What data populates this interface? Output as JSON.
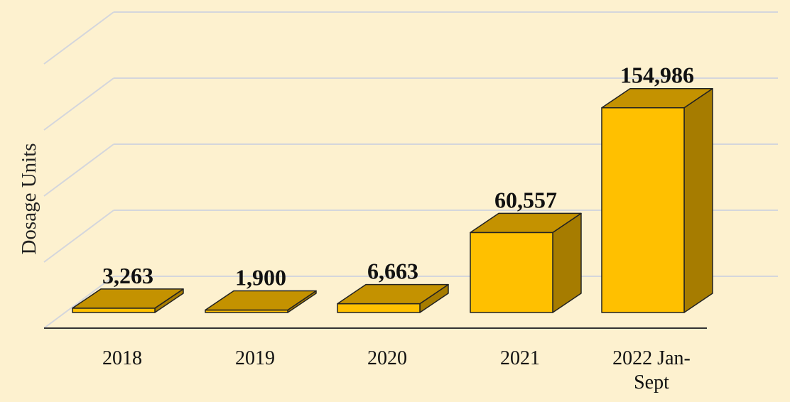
{
  "chart_data": {
    "type": "bar3d",
    "y_label": "Dosage Units",
    "categories": [
      "2018",
      "2019",
      "2020",
      "2021",
      "2022 Jan-Sept"
    ],
    "values": [
      3263,
      1900,
      6663,
      60557,
      154986
    ],
    "value_labels": [
      "3,263",
      "1,900",
      "6,663",
      "60,557",
      "154,986"
    ],
    "color": "#ffc000",
    "ylim": [
      0,
      200000
    ],
    "yticks": [
      0,
      50000,
      100000,
      150000,
      200000
    ],
    "grid": true
  }
}
